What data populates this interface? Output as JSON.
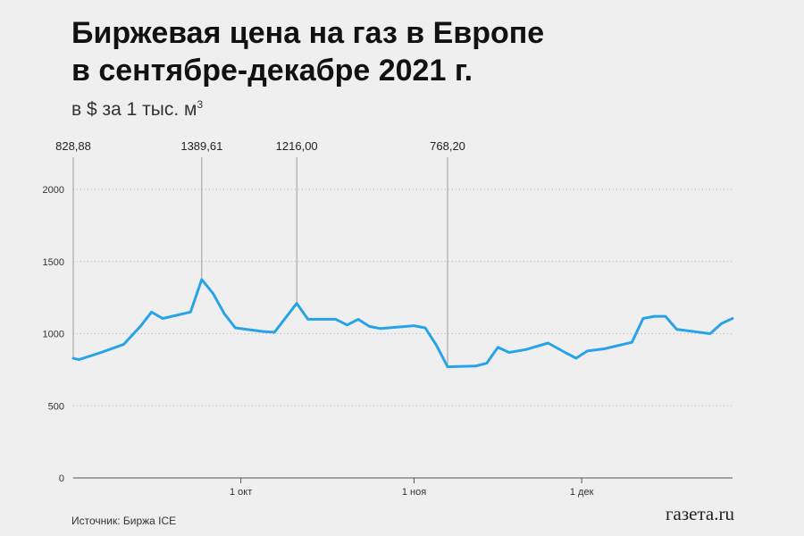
{
  "header": {
    "title_line1": "Биржевая цена на газ в Европе",
    "title_line2": "в сентябре-декабре 2021 г.",
    "subtitle_prefix": "в $ за 1 тыс. м",
    "subtitle_sup": "3"
  },
  "footer": {
    "source": "Источник: Биржа ICE",
    "logo": "газета.ru"
  },
  "chart_data": {
    "type": "line",
    "title": "Биржевая цена на газ в Европе в сентябре-декабре 2021 г.",
    "ylabel": "в $ за 1 тыс. м3",
    "ylim": [
      0,
      2200
    ],
    "yticks": [
      0,
      500,
      1000,
      1500,
      2000
    ],
    "xlim": [
      "2021-09-01",
      "2021-12-28"
    ],
    "xticks": [
      {
        "date": "2021-10-01",
        "label": "1 окт"
      },
      {
        "date": "2021-11-01",
        "label": "1 ноя"
      },
      {
        "date": "2021-12-01",
        "label": "1 дек"
      }
    ],
    "grid": "horizontal dotted",
    "line_color": "#29a3e8",
    "series": [
      {
        "points": [
          [
            "2021-09-01",
            829
          ],
          [
            "2021-09-02",
            820
          ],
          [
            "2021-09-06",
            870
          ],
          [
            "2021-09-10",
            925
          ],
          [
            "2021-09-13",
            1050
          ],
          [
            "2021-09-15",
            1150
          ],
          [
            "2021-09-17",
            1105
          ],
          [
            "2021-09-22",
            1150
          ],
          [
            "2021-09-24",
            1375
          ],
          [
            "2021-09-26",
            1280
          ],
          [
            "2021-09-28",
            1140
          ],
          [
            "2021-09-30",
            1040
          ],
          [
            "2021-10-05",
            1015
          ],
          [
            "2021-10-07",
            1010
          ],
          [
            "2021-10-11",
            1210
          ],
          [
            "2021-10-13",
            1100
          ],
          [
            "2021-10-18",
            1100
          ],
          [
            "2021-10-20",
            1060
          ],
          [
            "2021-10-22",
            1100
          ],
          [
            "2021-10-24",
            1050
          ],
          [
            "2021-10-26",
            1035
          ],
          [
            "2021-11-01",
            1055
          ],
          [
            "2021-11-03",
            1040
          ],
          [
            "2021-11-05",
            920
          ],
          [
            "2021-11-07",
            770
          ],
          [
            "2021-11-12",
            775
          ],
          [
            "2021-11-14",
            795
          ],
          [
            "2021-11-16",
            905
          ],
          [
            "2021-11-18",
            870
          ],
          [
            "2021-11-21",
            890
          ],
          [
            "2021-11-25",
            935
          ],
          [
            "2021-11-28",
            870
          ],
          [
            "2021-11-30",
            830
          ],
          [
            "2021-12-02",
            880
          ],
          [
            "2021-12-05",
            895
          ],
          [
            "2021-12-10",
            940
          ],
          [
            "2021-12-12",
            1105
          ],
          [
            "2021-12-14",
            1120
          ],
          [
            "2021-12-16",
            1120
          ],
          [
            "2021-12-18",
            1030
          ],
          [
            "2021-12-24",
            1000
          ],
          [
            "2021-12-26",
            1070
          ],
          [
            "2021-12-28",
            1105
          ]
        ]
      }
    ],
    "annotations": [
      {
        "date": "2021-09-01",
        "value": 829,
        "label": "828,88"
      },
      {
        "date": "2021-09-24",
        "value": 1375,
        "label": "1389,61"
      },
      {
        "date": "2021-10-11",
        "value": 1210,
        "label": "1216,00"
      },
      {
        "date": "2021-11-07",
        "value": 770,
        "label": "768,20"
      }
    ]
  }
}
